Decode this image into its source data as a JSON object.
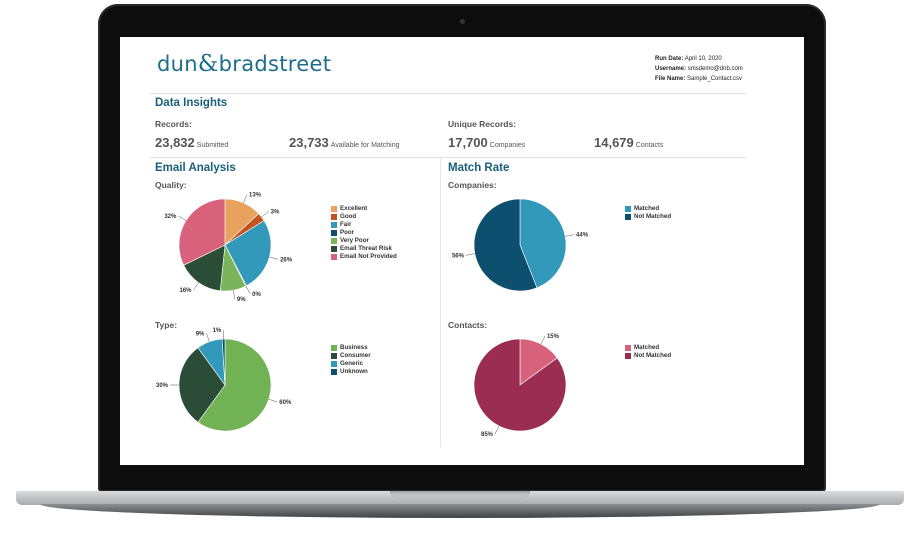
{
  "header": {
    "logo_text_left": "dun",
    "logo_amp": "&",
    "logo_text_right": "bradstreet",
    "run_date_label": "Run Date:",
    "run_date": "April 10, 2020",
    "username_label": "Username:",
    "username": "smsdemo@dnb.com",
    "file_name_label": "File Name:",
    "file_name": "Sample_Contact.csv"
  },
  "insights": {
    "title": "Data Insights",
    "records_label": "Records:",
    "submitted_value": "23,832",
    "submitted_label": "Submitted",
    "available_value": "23,733",
    "available_label": "Available for Matching",
    "unique_label": "Unique Records:",
    "companies_value": "17,700",
    "companies_label": "Companies",
    "contacts_value": "14,679",
    "contacts_label": "Contacts"
  },
  "email_analysis": {
    "title": "Email Analysis",
    "quality_label": "Quality:",
    "type_label": "Type:"
  },
  "match_rate": {
    "title": "Match Rate",
    "companies_label": "Companies:",
    "contacts_label": "Contacts:"
  },
  "chart_data": [
    {
      "type": "pie",
      "title": "Quality:",
      "series": [
        {
          "name": "Excellent",
          "value": 13,
          "label": "13%",
          "color": "#e8a25e"
        },
        {
          "name": "Good",
          "value": 3,
          "label": "3%",
          "color": "#c4521d"
        },
        {
          "name": "Fair",
          "value": 26,
          "label": "26%",
          "color": "#3399bb"
        },
        {
          "name": "Poor",
          "value": 0.3,
          "label": "0%",
          "color": "#0c4f6e"
        },
        {
          "name": "Very Poor",
          "value": 9,
          "label": "9%",
          "color": "#7ab55c"
        },
        {
          "name": "Email Threat Risk",
          "value": 16,
          "label": "16%",
          "color": "#2b4d38"
        },
        {
          "name": "Email Not Provided",
          "value": 32,
          "label": "32%",
          "color": "#d8627c"
        }
      ]
    },
    {
      "type": "pie",
      "title": "Type:",
      "series": [
        {
          "name": "Business",
          "value": 60,
          "label": "60%",
          "color": "#71b255"
        },
        {
          "name": "Consumer",
          "value": 30,
          "label": "30%",
          "color": "#2b4d38"
        },
        {
          "name": "Generic",
          "value": 9,
          "label": "9%",
          "color": "#3399bb"
        },
        {
          "name": "Unknown",
          "value": 1,
          "label": "1%",
          "color": "#0c4f6e"
        }
      ]
    },
    {
      "type": "pie",
      "title": "Companies:",
      "series": [
        {
          "name": "Matched",
          "value": 44,
          "label": "44%",
          "color": "#3399bb"
        },
        {
          "name": "Not Matched",
          "value": 56,
          "label": "56%",
          "color": "#0c4f6e"
        }
      ]
    },
    {
      "type": "pie",
      "title": "Contacts:",
      "series": [
        {
          "name": "Matched",
          "value": 15,
          "label": "15%",
          "color": "#d8627c"
        },
        {
          "name": "Not Matched",
          "value": 85,
          "label": "85%",
          "color": "#9b2c52"
        }
      ]
    }
  ]
}
